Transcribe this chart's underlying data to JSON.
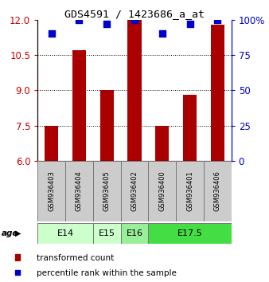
{
  "title": "GDS4591 / 1423686_a_at",
  "samples": [
    "GSM936403",
    "GSM936404",
    "GSM936405",
    "GSM936402",
    "GSM936400",
    "GSM936401",
    "GSM936406"
  ],
  "bar_values": [
    7.5,
    10.7,
    9.0,
    12.0,
    7.5,
    8.8,
    11.8
  ],
  "percentile_values": [
    90,
    100,
    97,
    100,
    90,
    97,
    100
  ],
  "ylim_left": [
    6,
    12
  ],
  "ylim_right": [
    0,
    100
  ],
  "yticks_left": [
    6,
    7.5,
    9,
    10.5,
    12
  ],
  "yticks_right": [
    0,
    25,
    50,
    75,
    100
  ],
  "ytick_labels_right": [
    "0",
    "25",
    "50",
    "75",
    "100%"
  ],
  "bar_color": "#aa0000",
  "dot_color": "#0000cc",
  "age_groups": [
    {
      "label": "E14",
      "start": 0,
      "end": 2,
      "color": "#ccffcc"
    },
    {
      "label": "E15",
      "start": 2,
      "end": 3,
      "color": "#ccffcc"
    },
    {
      "label": "E16",
      "start": 3,
      "end": 4,
      "color": "#99ee99"
    },
    {
      "label": "E17.5",
      "start": 4,
      "end": 7,
      "color": "#44dd44"
    }
  ],
  "legend_bar_label": "transformed count",
  "legend_dot_label": "percentile rank within the sample",
  "bg_color": "#ffffff",
  "sample_box_color": "#cccccc",
  "bar_width": 0.5,
  "dot_size": 28,
  "age_label": "age"
}
